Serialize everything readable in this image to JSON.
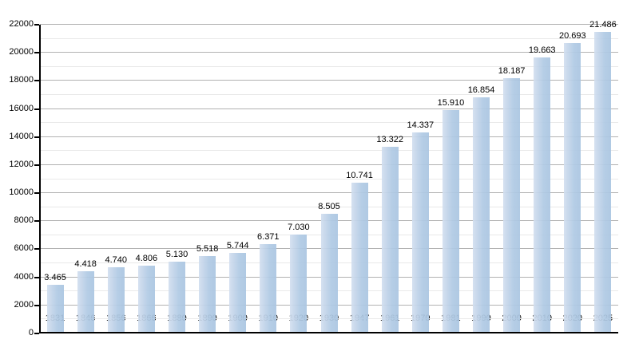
{
  "chart_data": {
    "type": "bar",
    "title": "",
    "xlabel": "",
    "ylabel": "",
    "categories": [
      "1831",
      "1846",
      "1856",
      "1866",
      "1880",
      "1890",
      "1900",
      "1910",
      "1920",
      "1930",
      "1947",
      "1961",
      "1970",
      "1981",
      "1990",
      "2000",
      "2010",
      "2020",
      "2025"
    ],
    "values": [
      3465,
      4418,
      4740,
      4806,
      5130,
      5518,
      5744,
      6371,
      7030,
      8505,
      10741,
      13322,
      14337,
      15910,
      16854,
      18187,
      19663,
      20693,
      21486
    ],
    "value_labels": [
      "3.465",
      "4.418",
      "4.740",
      "4.806",
      "5.130",
      "5.518",
      "5.744",
      "6.371",
      "7.030",
      "8.505",
      "10.741",
      "13.322",
      "14.337",
      "15.910",
      "16.854",
      "18.187",
      "19.663",
      "20.693",
      "21.486"
    ],
    "ylim": [
      0,
      22000
    ],
    "y_major_step": 2000,
    "y_minor_step": 1000,
    "y_tick_labels": [
      "0",
      "2000",
      "4000",
      "6000",
      "8000",
      "10000",
      "12000",
      "14000",
      "16000",
      "18000",
      "20000",
      "22000"
    ],
    "grid": "on",
    "legend": "none",
    "colors": {
      "bar_fill": "#b0cae4",
      "bar_fill_light_edge": "#d2dfef",
      "major_gridline": "#b2b2b2",
      "minor_gridline": "#e9e9e9",
      "axis": "#000000",
      "label_text": "#000000",
      "background": "#ffffff"
    }
  }
}
